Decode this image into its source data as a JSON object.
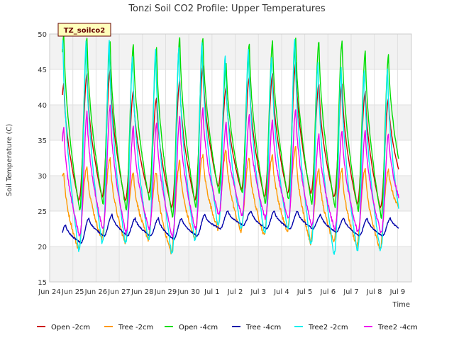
{
  "chart_data": {
    "type": "line",
    "title": "Tonzi Soil CO2 Profile: Upper Temperatures",
    "xlabel": "Time",
    "ylabel": "Soil Temperature (C)",
    "site_tag": "TZ_soilco2",
    "ylim": [
      15,
      50
    ],
    "yticks": [
      15,
      20,
      25,
      30,
      35,
      40,
      45,
      50
    ],
    "xlim": [
      0,
      15.6
    ],
    "xticks": [
      {
        "x": 0,
        "label": "Jun 24"
      },
      {
        "x": 1,
        "label": "Jun 25"
      },
      {
        "x": 2,
        "label": "Jun 26"
      },
      {
        "x": 3,
        "label": "Jun 27"
      },
      {
        "x": 4,
        "label": "Jun 28"
      },
      {
        "x": 5,
        "label": "Jun 29"
      },
      {
        "x": 6,
        "label": "Jun 30"
      },
      {
        "x": 7,
        "label": "Jul 1"
      },
      {
        "x": 8,
        "label": "Jul 2"
      },
      {
        "x": 9,
        "label": "Jul 3"
      },
      {
        "x": 10,
        "label": "Jul 4"
      },
      {
        "x": 11,
        "label": "Jul 5"
      },
      {
        "x": 12,
        "label": "Jul 6"
      },
      {
        "x": 13,
        "label": "Jul 7"
      },
      {
        "x": 14,
        "label": "Jul 8"
      },
      {
        "x": 15,
        "label": "Jul 9"
      }
    ],
    "x_start_day": 0.55,
    "x_end_day": 15.05,
    "grid": true,
    "band_shading": "alternating horizontal bands",
    "legend_position": "bottom",
    "series": [
      {
        "name": "Open -2cm",
        "color": "#cc0000",
        "min": [
          27,
          26.5,
          27,
          26.5,
          27.5,
          25.5,
          26.5,
          28.5,
          28,
          27,
          27.5,
          27.5,
          27,
          26,
          25.5,
          28.5
        ],
        "max": [
          43,
          44.5,
          45,
          42,
          41,
          43.5,
          45.5,
          42.5,
          44,
          44.5,
          46,
          43,
          43,
          42,
          41
        ]
      },
      {
        "name": "Tree -2cm",
        "color": "#ff9900",
        "min": [
          21,
          19.5,
          21,
          20.5,
          21,
          19,
          21,
          22.5,
          22,
          21.5,
          22,
          20.5,
          20.5,
          20,
          19.5,
          24
        ],
        "max": [
          30.5,
          31.5,
          32.5,
          30.5,
          30.5,
          32,
          33,
          33.5,
          32.5,
          33,
          34,
          31,
          31,
          31,
          31
        ]
      },
      {
        "name": "Open -4cm",
        "color": "#00dd00",
        "min": [
          25,
          25,
          26,
          25,
          26.5,
          24,
          25.5,
          27.5,
          27.5,
          26,
          26.5,
          26,
          25.5,
          25,
          24,
          28
        ]
      },
      {
        "name": "Tree -4cm",
        "color": "#0000aa",
        "min": [
          20.5,
          20.5,
          21.5,
          21.5,
          21.5,
          21,
          21.5,
          22.5,
          23,
          22.5,
          22.5,
          22.5,
          22,
          21.5,
          21.5,
          22
        ],
        "max": [
          23,
          24,
          24.5,
          24,
          24,
          24,
          24.5,
          25,
          25,
          25,
          25,
          24.5,
          24,
          24,
          24
        ]
      },
      {
        "name": "Tree2 -2cm",
        "color": "#00eeee",
        "min": [
          18,
          19.5,
          20.5,
          20.5,
          21,
          19,
          21,
          23,
          22.5,
          22,
          22.5,
          20.5,
          19,
          19.5,
          19.5,
          21
        ],
        "max": [
          49,
          49,
          49,
          47,
          48,
          48,
          49,
          47,
          48,
          47,
          49.5,
          46,
          45.5,
          45,
          45
        ]
      },
      {
        "name": "Tree2 -4cm",
        "color": "#ee00ee",
        "min": [
          20.5,
          21.5,
          22.5,
          22,
          22.5,
          21.5,
          22.5,
          24.5,
          24.5,
          24,
          24,
          23,
          22.5,
          22,
          22,
          24.5
        ],
        "max": [
          37,
          39,
          40,
          37,
          37.5,
          38.5,
          39.5,
          37.5,
          38.5,
          38,
          39.5,
          36,
          36.5,
          36.5,
          36
        ]
      }
    ],
    "open4_max": [
      50,
      49.5,
      49,
      48.5,
      48,
      49.5,
      49.5,
      46,
      48.5,
      49,
      49.5,
      49,
      49,
      47.5,
      47
    ]
  }
}
